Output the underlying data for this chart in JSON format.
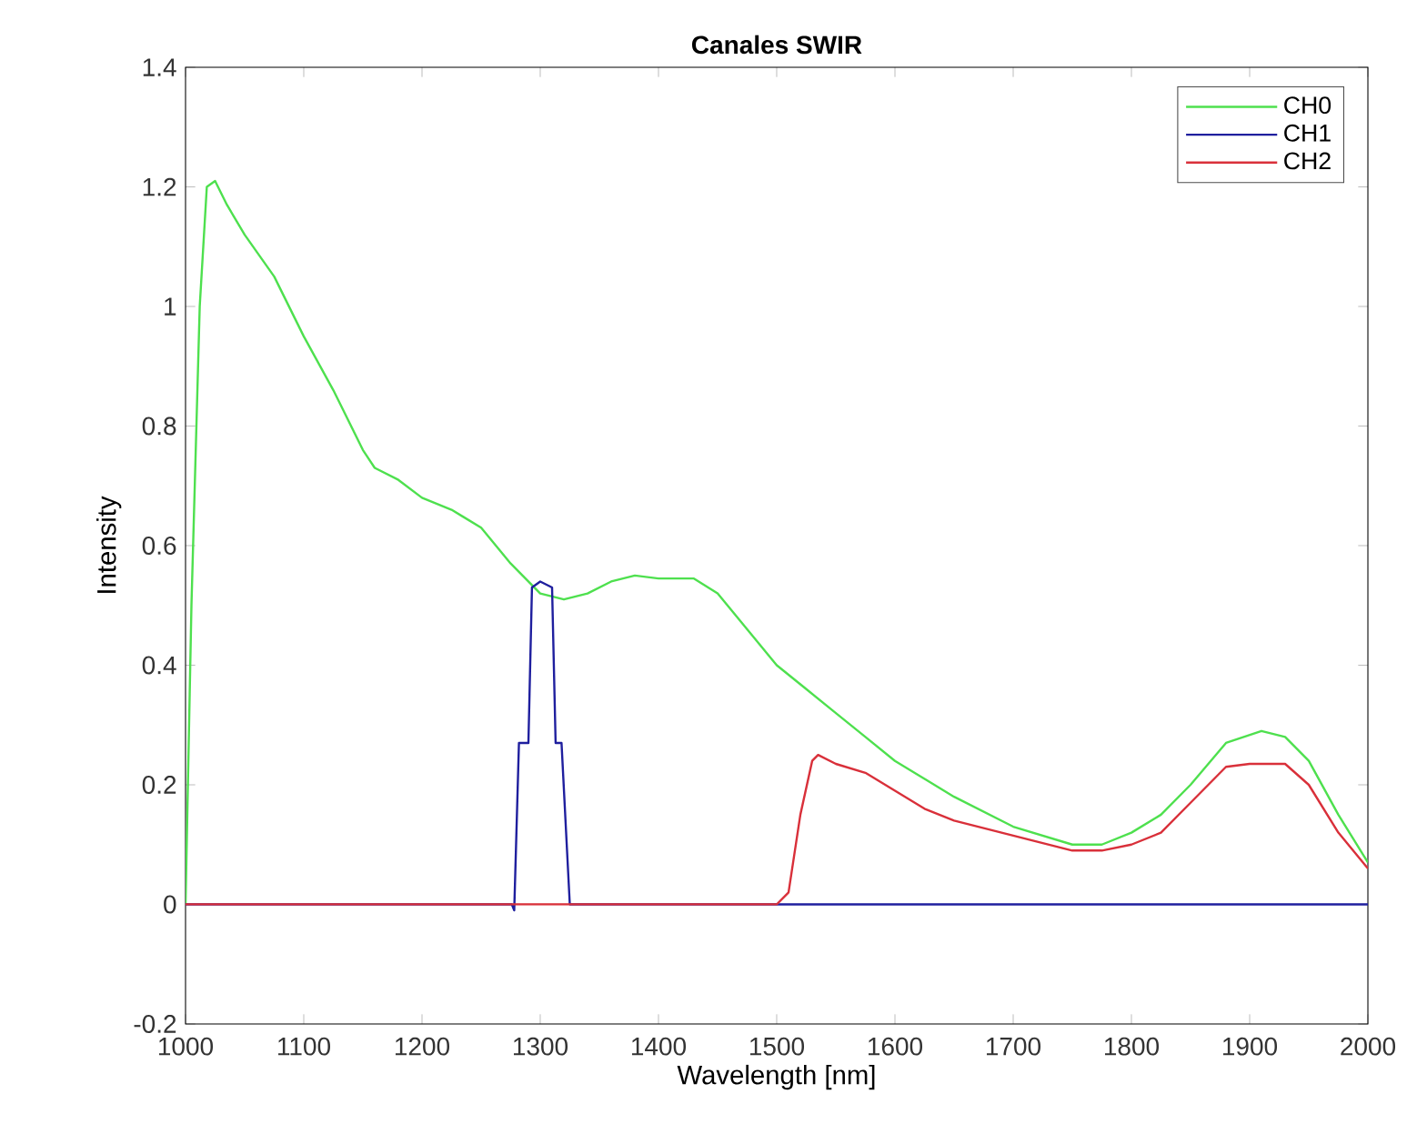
{
  "chart_data": {
    "type": "line",
    "title": "Canales SWIR",
    "xlabel": "Wavelength [nm]",
    "ylabel": "Intensity",
    "xlim": [
      1000,
      2000
    ],
    "xticks": [
      1000,
      1100,
      1200,
      1300,
      1400,
      1500,
      1600,
      1700,
      1800,
      1900,
      2000
    ],
    "ylim": [
      -0.2,
      1.4
    ],
    "yticks": [
      -0.2,
      0,
      0.2,
      0.4,
      0.6,
      0.8,
      1,
      1.2,
      1.4
    ],
    "grid": false,
    "legend": "top right",
    "marker": "none",
    "line_style": "solid",
    "series": [
      {
        "name": "CH0",
        "color": "#4ee04e",
        "x": [
          1000,
          1005,
          1012,
          1018,
          1025,
          1035,
          1050,
          1075,
          1100,
          1125,
          1150,
          1160,
          1180,
          1200,
          1225,
          1250,
          1275,
          1300,
          1320,
          1340,
          1360,
          1380,
          1400,
          1430,
          1450,
          1475,
          1500,
          1525,
          1550,
          1575,
          1600,
          1650,
          1700,
          1750,
          1775,
          1800,
          1825,
          1850,
          1880,
          1910,
          1930,
          1950,
          1975,
          2000
        ],
        "values": [
          0,
          0.5,
          1.0,
          1.2,
          1.21,
          1.17,
          1.12,
          1.05,
          0.95,
          0.86,
          0.76,
          0.73,
          0.71,
          0.68,
          0.66,
          0.63,
          0.57,
          0.52,
          0.51,
          0.52,
          0.54,
          0.55,
          0.545,
          0.545,
          0.52,
          0.46,
          0.4,
          0.36,
          0.32,
          0.28,
          0.24,
          0.18,
          0.13,
          0.1,
          0.1,
          0.12,
          0.15,
          0.2,
          0.27,
          0.29,
          0.28,
          0.24,
          0.15,
          0.07
        ]
      },
      {
        "name": "CH1",
        "color": "#1f1f9e",
        "x": [
          1000,
          1276,
          1278,
          1282,
          1290,
          1293,
          1300,
          1310,
          1313,
          1318,
          1325,
          2000
        ],
        "values": [
          0,
          0,
          -0.01,
          0.27,
          0.27,
          0.53,
          0.54,
          0.53,
          0.27,
          0.27,
          0,
          0
        ]
      },
      {
        "name": "CH2",
        "color": "#d9303a",
        "x": [
          1000,
          1500,
          1510,
          1520,
          1530,
          1535,
          1550,
          1575,
          1600,
          1625,
          1650,
          1700,
          1750,
          1775,
          1800,
          1825,
          1850,
          1880,
          1900,
          1930,
          1950,
          1975,
          2000
        ],
        "values": [
          0,
          0,
          0.02,
          0.15,
          0.24,
          0.25,
          0.235,
          0.22,
          0.19,
          0.16,
          0.14,
          0.115,
          0.09,
          0.09,
          0.1,
          0.12,
          0.17,
          0.23,
          0.235,
          0.235,
          0.2,
          0.12,
          0.06
        ]
      }
    ]
  }
}
